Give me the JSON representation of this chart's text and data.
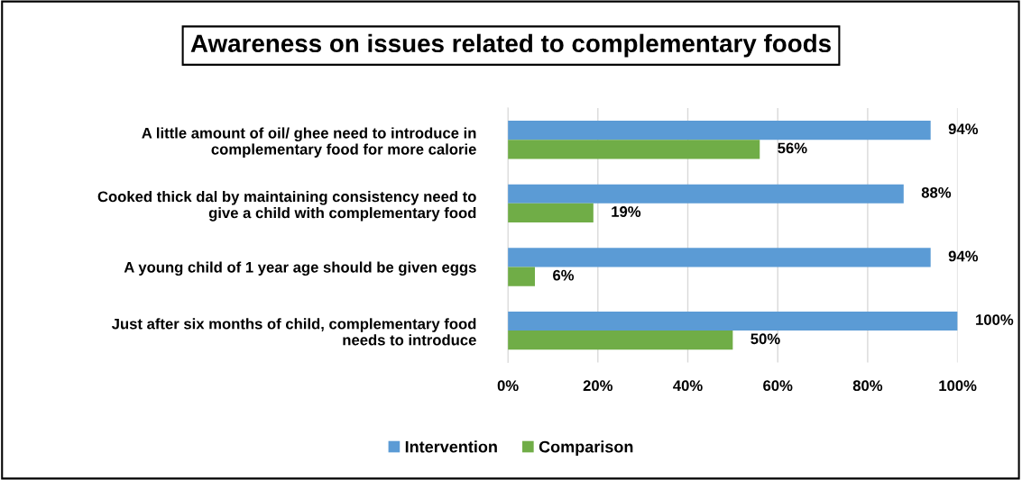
{
  "chart_data": {
    "type": "bar",
    "orientation": "horizontal",
    "title": "Awareness on issues related to complementary foods",
    "categories": [
      "A little amount of oil/ ghee need to introduce in\ncomplementary food for more calorie",
      "Cooked thick dal by maintaining consistency need to\ngive a child with complementary food",
      "A young child of 1 year age should be given eggs",
      "Just after six months of child, complementary food\nneeds to introduce"
    ],
    "series": [
      {
        "name": "Intervention",
        "color": "#5b9bd5",
        "values": [
          94,
          88,
          94,
          100
        ],
        "value_labels": [
          "94%",
          "88%",
          "94%",
          "100%"
        ]
      },
      {
        "name": "Comparison",
        "color": "#70ad47",
        "values": [
          56,
          19,
          6,
          50
        ],
        "value_labels": [
          "56%",
          "19%",
          "6%",
          "50%"
        ]
      }
    ],
    "xlim": [
      0,
      100
    ],
    "xticks": [
      {
        "value": 0,
        "label": "0%"
      },
      {
        "value": 20,
        "label": "20%"
      },
      {
        "value": 40,
        "label": "40%"
      },
      {
        "value": 60,
        "label": "60%"
      },
      {
        "value": 80,
        "label": "80%"
      },
      {
        "value": 100,
        "label": "100%"
      }
    ],
    "grid": "x",
    "legend": "bottom"
  }
}
